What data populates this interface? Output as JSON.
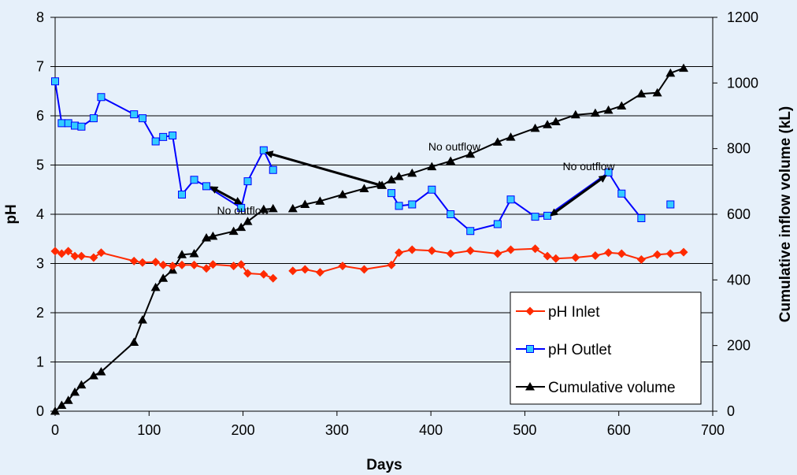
{
  "chart_data": {
    "type": "line",
    "xlabel": "Days",
    "ylabel": "pH",
    "y2label": "Cumulative inflow volume (kL)",
    "xlim": [
      0,
      700
    ],
    "ylim": [
      0,
      8
    ],
    "y2lim": [
      0,
      1200
    ],
    "x_ticks": [
      0,
      100,
      200,
      300,
      400,
      500,
      600,
      700
    ],
    "y_ticks": [
      0,
      1,
      2,
      3,
      4,
      5,
      6,
      7,
      8
    ],
    "y2_ticks": [
      0,
      200,
      400,
      600,
      800,
      1000,
      1200
    ],
    "grid": "horizontal",
    "legend_position": "bottom-right",
    "series": [
      {
        "name": "pH Inlet",
        "axis": "left",
        "color": "#ff2a00",
        "marker": "diamond",
        "segments": [
          [
            [
              0,
              3.25
            ],
            [
              7,
              3.2
            ],
            [
              14,
              3.25
            ],
            [
              21,
              3.15
            ],
            [
              28,
              3.15
            ],
            [
              41,
              3.12
            ],
            [
              49,
              3.22
            ],
            [
              84,
              3.05
            ],
            [
              93,
              3.02
            ],
            [
              107,
              3.03
            ],
            [
              115,
              2.97
            ],
            [
              125,
              2.95
            ],
            [
              135,
              2.97
            ],
            [
              148,
              2.97
            ],
            [
              161,
              2.9
            ],
            [
              168,
              2.98
            ],
            [
              190,
              2.95
            ],
            [
              198,
              2.98
            ],
            [
              205,
              2.8
            ],
            [
              222,
              2.78
            ],
            [
              232,
              2.7
            ]
          ],
          [
            [
              253,
              2.85
            ],
            [
              266,
              2.88
            ],
            [
              282,
              2.82
            ],
            [
              306,
              2.95
            ],
            [
              329,
              2.88
            ],
            [
              358,
              2.97
            ],
            [
              366,
              3.22
            ],
            [
              380,
              3.28
            ],
            [
              401,
              3.26
            ],
            [
              421,
              3.2
            ],
            [
              442,
              3.26
            ],
            [
              471,
              3.2
            ],
            [
              485,
              3.28
            ],
            [
              511,
              3.3
            ],
            [
              524,
              3.15
            ],
            [
              533,
              3.1
            ],
            [
              554,
              3.12
            ],
            [
              575,
              3.16
            ],
            [
              589,
              3.22
            ],
            [
              603,
              3.2
            ],
            [
              624,
              3.08
            ],
            [
              641,
              3.18
            ],
            [
              655,
              3.2
            ],
            [
              669,
              3.23
            ]
          ]
        ]
      },
      {
        "name": "pH Outlet",
        "axis": "left",
        "color": "#0000ff",
        "marker_fill": "#33ccff",
        "marker": "square",
        "segments": [
          [
            [
              0,
              6.7
            ],
            [
              7,
              5.85
            ],
            [
              14,
              5.85
            ],
            [
              21,
              5.8
            ],
            [
              28,
              5.78
            ],
            [
              41,
              5.95
            ],
            [
              49,
              6.38
            ],
            [
              84,
              6.03
            ],
            [
              93,
              5.95
            ],
            [
              107,
              5.48
            ],
            [
              115,
              5.57
            ],
            [
              125,
              5.6
            ],
            [
              135,
              4.4
            ],
            [
              148,
              4.7
            ],
            [
              161,
              4.57
            ],
            [
              198,
              4.13
            ],
            [
              205,
              4.67
            ],
            [
              222,
              5.3
            ],
            [
              232,
              4.9
            ]
          ],
          [
            [
              358,
              4.43
            ],
            [
              366,
              4.17
            ],
            [
              380,
              4.2
            ],
            [
              401,
              4.5
            ],
            [
              421,
              4.0
            ],
            [
              442,
              3.66
            ],
            [
              471,
              3.8
            ],
            [
              485,
              4.3
            ],
            [
              511,
              3.95
            ],
            [
              524,
              3.97
            ],
            [
              589,
              4.85
            ],
            [
              603,
              4.42
            ],
            [
              624,
              3.92
            ]
          ],
          [
            [
              655,
              4.2
            ]
          ]
        ]
      },
      {
        "name": "Cumulative volume",
        "axis": "right",
        "color": "#000000",
        "marker": "triangle",
        "segments": [
          [
            [
              0,
              0
            ],
            [
              7,
              18
            ],
            [
              14,
              33
            ],
            [
              21,
              58
            ],
            [
              28,
              80
            ],
            [
              41,
              108
            ],
            [
              49,
              120
            ],
            [
              84,
              210
            ],
            [
              93,
              278
            ],
            [
              107,
              377
            ],
            [
              115,
              405
            ],
            [
              125,
              430
            ],
            [
              135,
              477
            ],
            [
              148,
              480
            ],
            [
              161,
              528
            ],
            [
              168,
              533
            ],
            [
              190,
              548
            ],
            [
              198,
              560
            ],
            [
              205,
              578
            ],
            [
              222,
              615
            ],
            [
              232,
              617
            ]
          ],
          [
            [
              253,
              617
            ],
            [
              266,
              630
            ],
            [
              282,
              640
            ],
            [
              306,
              660
            ],
            [
              329,
              678
            ],
            [
              348,
              688
            ],
            [
              358,
              705
            ],
            [
              366,
              715
            ],
            [
              380,
              725
            ],
            [
              401,
              745
            ],
            [
              421,
              762
            ],
            [
              442,
              783
            ],
            [
              471,
              820
            ],
            [
              485,
              835
            ],
            [
              511,
              862
            ],
            [
              524,
              873
            ],
            [
              533,
              882
            ],
            [
              554,
              903
            ],
            [
              575,
              908
            ],
            [
              589,
              917
            ],
            [
              603,
              930
            ],
            [
              624,
              967
            ],
            [
              641,
              970
            ],
            [
              655,
              1030
            ],
            [
              669,
              1045
            ]
          ]
        ]
      }
    ],
    "annotations": [
      {
        "text": "No outflow",
        "label_x": 200,
        "label_y": 4.0,
        "arrow_from": [
          166,
          4.55
        ],
        "arrow_to": [
          198,
          4.22
        ]
      },
      {
        "text": "No outflow",
        "label_x": 425,
        "label_y": 5.3,
        "arrow_from": [
          225,
          5.25
        ],
        "arrow_to": [
          350,
          4.57
        ]
      },
      {
        "text": "No outflow",
        "label_x": 568,
        "label_y": 4.9,
        "arrow_from": [
          528,
          3.98
        ],
        "arrow_to": [
          586,
          4.78
        ]
      }
    ]
  }
}
